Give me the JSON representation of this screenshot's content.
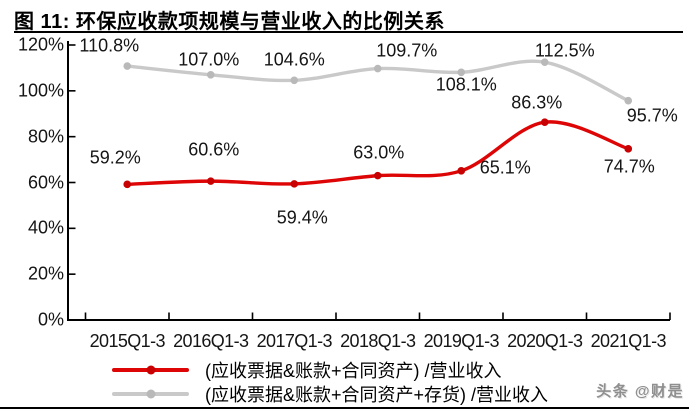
{
  "title": "图 11: 环保应收款项规模与营业收入的比例关系",
  "watermark": "头条 @财是",
  "chart_data": {
    "type": "line",
    "title": "环保应收款项规模与营业收入的比例关系",
    "categories": [
      "2015Q1-3",
      "2016Q1-3",
      "2017Q1-3",
      "2018Q1-3",
      "2019Q1-3",
      "2020Q1-3",
      "2021Q1-3"
    ],
    "series": [
      {
        "name": "(应收票据&账款+合同资产) /营业收入",
        "color": "#dd0505",
        "marker_color": "#c80202",
        "values": [
          59.2,
          60.6,
          59.4,
          63.0,
          65.1,
          86.3,
          74.7
        ],
        "label_offsets": [
          [
            -12,
            -26
          ],
          [
            3,
            -31
          ],
          [
            8,
            34
          ],
          [
            1,
            -23
          ],
          [
            44,
            -3
          ],
          [
            -8,
            -19
          ],
          [
            1,
            18
          ]
        ]
      },
      {
        "name": "(应收票据&账款+合同资产+存货) /营业收入",
        "color": "#c9c9c9",
        "marker_color": "#b9b9b9",
        "values": [
          110.8,
          107.0,
          104.6,
          109.7,
          108.1,
          112.5,
          95.7
        ],
        "label_offsets": [
          [
            -18,
            -20
          ],
          [
            -2,
            -15
          ],
          [
            0,
            -20
          ],
          [
            29,
            -18
          ],
          [
            5,
            13
          ],
          [
            20,
            -11
          ],
          [
            24,
            15
          ]
        ]
      }
    ],
    "ylim": [
      0,
      120
    ],
    "ytick_step": 20,
    "ytick_labels": [
      "0%",
      "20%",
      "40%",
      "60%",
      "80%",
      "100%",
      "120%"
    ],
    "xlabel": "",
    "ylabel": "",
    "grid": false,
    "legend_position": "bottom",
    "axis_color": "#000000",
    "label_suffix": "%"
  }
}
